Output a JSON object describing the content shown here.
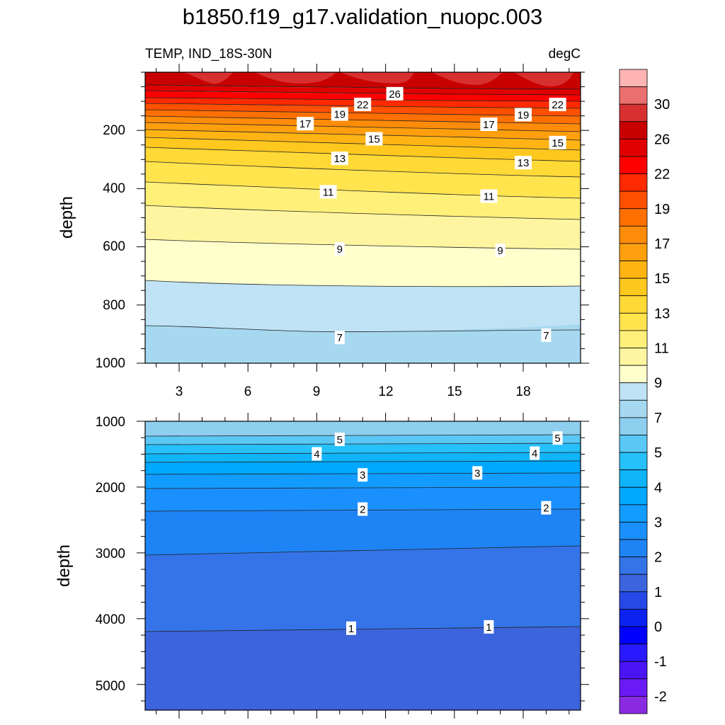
{
  "chart_data": {
    "type": "contour",
    "title": "b1850.f19_g17.validation_nuopc.003",
    "left_subtitle": "TEMP, IND_18S-30N",
    "right_subtitle": "degC",
    "ylabel": "depth",
    "x_ticks": [
      "3",
      "6",
      "9",
      "12",
      "15",
      "18"
    ],
    "upper_panel": {
      "ylim": [
        0,
        1000
      ],
      "y_ticks": [
        "200",
        "400",
        "600",
        "800",
        "1000"
      ]
    },
    "lower_panel": {
      "ylim": [
        1000,
        5400
      ],
      "y_ticks": [
        "1000",
        "2000",
        "3000",
        "4000",
        "5000"
      ]
    },
    "colorbar": {
      "labels": [
        "-2",
        "-1",
        "0",
        "1",
        "2",
        "3",
        "4",
        "5",
        "7",
        "9",
        "11",
        "13",
        "15",
        "17",
        "19",
        "22",
        "26",
        "30"
      ],
      "levels": [
        -2,
        -1.5,
        -1,
        -0.5,
        0,
        0.5,
        1,
        1.5,
        2,
        2.5,
        3,
        3.5,
        4,
        4.5,
        5,
        6,
        7,
        8,
        9,
        10,
        11,
        12,
        13,
        14,
        15,
        16,
        17,
        18,
        19,
        20,
        22,
        24,
        26,
        28,
        30,
        32
      ],
      "colors": [
        "#8a2be2",
        "#6a1af5",
        "#4a14f5",
        "#2a1aff",
        "#0000ff",
        "#0c22f0",
        "#2648e6",
        "#3c64dc",
        "#3474e8",
        "#1e84f5",
        "#1a90ff",
        "#129cff",
        "#00a8ff",
        "#10b4f8",
        "#26c0fa",
        "#5ac8f5",
        "#8ecfef",
        "#a6d8f0",
        "#bfe3f5",
        "#ffffcc",
        "#fff5a0",
        "#fff07a",
        "#ffe44e",
        "#ffd936",
        "#ffc81e",
        "#ffb414",
        "#ff9f0e",
        "#ff8c08",
        "#ff7000",
        "#ff5000",
        "#ff2a00",
        "#ff0000",
        "#e00000",
        "#c80000",
        "#d83030",
        "#ea7070",
        "#ffb4b4"
      ]
    },
    "contour_labels": [
      {
        "text": "26",
        "x": 12.4,
        "depth": 75
      },
      {
        "text": "22",
        "x": 11.0,
        "depth": 112
      },
      {
        "text": "22",
        "x": 19.5,
        "depth": 112
      },
      {
        "text": "19",
        "x": 10.0,
        "depth": 145
      },
      {
        "text": "19",
        "x": 18.0,
        "depth": 147
      },
      {
        "text": "17",
        "x": 8.5,
        "depth": 178
      },
      {
        "text": "17",
        "x": 16.5,
        "depth": 180
      },
      {
        "text": "15",
        "x": 11.5,
        "depth": 230
      },
      {
        "text": "15",
        "x": 19.5,
        "depth": 243
      },
      {
        "text": "13",
        "x": 10.0,
        "depth": 297
      },
      {
        "text": "13",
        "x": 18.0,
        "depth": 312
      },
      {
        "text": "11",
        "x": 9.5,
        "depth": 412
      },
      {
        "text": "11",
        "x": 16.5,
        "depth": 427
      },
      {
        "text": "9",
        "x": 10.0,
        "depth": 608
      },
      {
        "text": "9",
        "x": 17.0,
        "depth": 613
      },
      {
        "text": "7",
        "x": 10.0,
        "depth": 913
      },
      {
        "text": "7",
        "x": 19.0,
        "depth": 905
      },
      {
        "text": "5",
        "x": 10.0,
        "depth": 1280
      },
      {
        "text": "5",
        "x": 19.5,
        "depth": 1260
      },
      {
        "text": "4",
        "x": 9.0,
        "depth": 1500
      },
      {
        "text": "4",
        "x": 18.5,
        "depth": 1490
      },
      {
        "text": "3",
        "x": 11.0,
        "depth": 1820
      },
      {
        "text": "3",
        "x": 16.0,
        "depth": 1790
      },
      {
        "text": "2",
        "x": 11.0,
        "depth": 2340
      },
      {
        "text": "2",
        "x": 19.0,
        "depth": 2320
      },
      {
        "text": "1",
        "x": 10.5,
        "depth": 4150
      },
      {
        "text": "1",
        "x": 16.5,
        "depth": 4130
      }
    ]
  }
}
